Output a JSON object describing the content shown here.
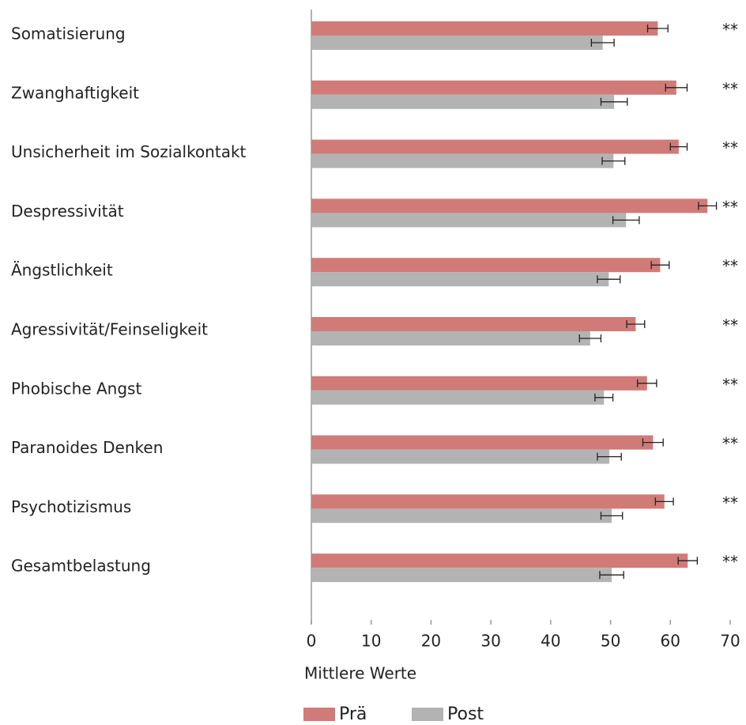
{
  "chart_data": {
    "type": "bar",
    "orientation": "horizontal",
    "categories": [
      "Somatisierung",
      "Zwanghaftigkeit",
      "Unsicherheit im Sozialkontakt",
      "Despressivität",
      "Ängstlichkeit",
      "Agressivität/Feinseligkeit",
      "Phobische Angst",
      "Paranoides Denken",
      "Psychotizismus",
      "Gesamtbelastung"
    ],
    "series": [
      {
        "name": "Prä",
        "color": "#d17b78",
        "values": [
          57.9,
          61.0,
          61.4,
          66.2,
          58.3,
          54.2,
          56.1,
          57.1,
          59.0,
          62.9
        ],
        "errors": [
          1.7,
          1.8,
          1.4,
          1.5,
          1.5,
          1.5,
          1.6,
          1.7,
          1.5,
          1.6
        ]
      },
      {
        "name": "Post",
        "color": "#b3b3b3",
        "values": [
          48.7,
          50.6,
          50.5,
          52.6,
          49.7,
          46.6,
          48.9,
          49.8,
          50.2,
          50.2
        ],
        "errors": [
          1.9,
          2.2,
          1.9,
          2.2,
          1.9,
          1.8,
          1.5,
          2.0,
          1.8,
          2.0
        ]
      }
    ],
    "annotations": [
      "**",
      "**",
      "**",
      "**",
      "**",
      "**",
      "**",
      "**",
      "**",
      "**"
    ],
    "x_label": "Mittlere Werte",
    "xlim": [
      0,
      70
    ],
    "xticks": [
      0,
      10,
      20,
      30,
      40,
      50,
      60,
      70
    ],
    "legend": "bottom"
  }
}
